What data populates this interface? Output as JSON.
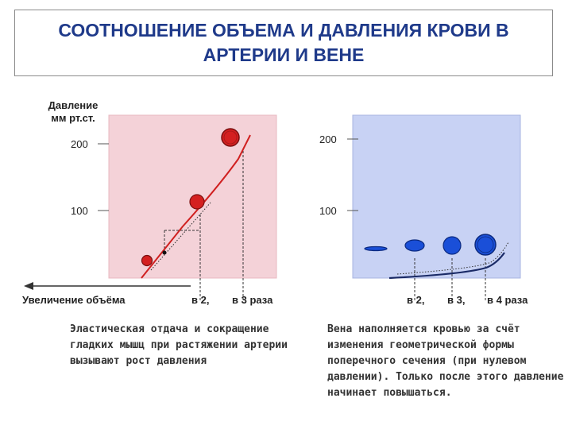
{
  "title": "СООТНОШЕНИЕ ОБЪЕМА И ДАВЛЕНИЯ КРОВИ В АРТЕРИИ И ВЕНЕ",
  "artery": {
    "y_label_line1": "Давление",
    "y_label_line2": "мм рт.ст.",
    "tick_200": "200",
    "tick_100": "100",
    "x_axis_label": "Увеличение объёма",
    "mark_2": "в 2,",
    "mark_3": "в 3 раза",
    "background": "#f4d2d8",
    "vessel_color": "#d42020",
    "curve_color": "#d02020",
    "caption": "Эластическая отдача и сокращение гладких мышц при растяжении артерии вызывают рост давления"
  },
  "vein": {
    "tick_200": "200",
    "tick_100": "100",
    "mark_2": "в 2,",
    "mark_3": "в 3,",
    "mark_4": "в 4 раза",
    "background": "#c8d2f4",
    "vessel_color": "#1a4fd8",
    "curve_color": "#1a2a66",
    "caption": "Вена наполняется кровью за счёт изменения геометрической формы поперечного сечения (при нулевом давлении). Только после этого давление начинает повышаться."
  }
}
